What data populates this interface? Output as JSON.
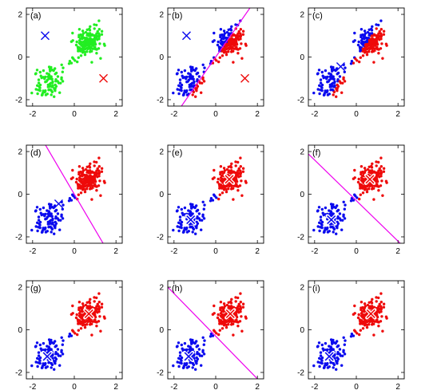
{
  "colors": {
    "unassigned": "#22ee22",
    "cluster1": "#0a0aee",
    "cluster2": "#ee0a0a",
    "boundary": "#ee00ee",
    "centroid_outline": "#ffffff"
  },
  "chart_data": [
    {
      "type": "scatter",
      "title": "(a)",
      "xlim": [
        -2.3,
        2.3
      ],
      "ylim": [
        -2.3,
        2.3
      ],
      "xticks": [
        "-2",
        "0",
        "2"
      ],
      "yticks": [
        "-2",
        "0",
        "2"
      ],
      "state": "unassigned",
      "centroids": [
        [
          -1.4,
          1.0
        ],
        [
          1.4,
          -1.0
        ]
      ],
      "centroid_style": "plain",
      "boundary": null
    },
    {
      "type": "scatter",
      "title": "(b)",
      "xlim": [
        -2.3,
        2.3
      ],
      "ylim": [
        -2.3,
        2.3
      ],
      "xticks": [
        "-2",
        "0",
        "2"
      ],
      "yticks": [
        "-2",
        "0",
        "2"
      ],
      "state": "assign",
      "centroids": [
        [
          -1.4,
          1.0
        ],
        [
          1.4,
          -1.0
        ]
      ],
      "centroid_style": "plain",
      "boundary": {
        "slope": 1.4,
        "intercept": 0.0
      }
    },
    {
      "type": "scatter",
      "title": "(c)",
      "xlim": [
        -2.3,
        2.3
      ],
      "ylim": [
        -2.3,
        2.3
      ],
      "xticks": [
        "-2",
        "0",
        "2"
      ],
      "yticks": [
        "-2",
        "0",
        "2"
      ],
      "state": "assign",
      "centroids": [
        [
          -0.75,
          -0.45
        ],
        [
          0.75,
          0.45
        ]
      ],
      "centroid_style": "plain",
      "boundary": null
    },
    {
      "type": "scatter",
      "title": "(d)",
      "xlim": [
        -2.3,
        2.3
      ],
      "ylim": [
        -2.3,
        2.3
      ],
      "xticks": [
        "-2",
        "0",
        "2"
      ],
      "yticks": [
        "-2",
        "0",
        "2"
      ],
      "state": "assign2",
      "centroids": [
        [
          -0.75,
          -0.45
        ],
        [
          0.75,
          0.45
        ]
      ],
      "centroid_style": "plain",
      "boundary": {
        "slope": -1.667,
        "intercept": 0.0
      }
    },
    {
      "type": "scatter",
      "title": "(e)",
      "xlim": [
        -2.3,
        2.3
      ],
      "ylim": [
        -2.3,
        2.3
      ],
      "xticks": [
        "-2",
        "0",
        "2"
      ],
      "yticks": [
        "-2",
        "0",
        "2"
      ],
      "state": "assign2",
      "centroids": [
        [
          -1.2,
          -1.2
        ],
        [
          0.65,
          0.7
        ]
      ],
      "centroid_style": "outlined",
      "boundary": null
    },
    {
      "type": "scatter",
      "title": "(f)",
      "xlim": [
        -2.3,
        2.3
      ],
      "ylim": [
        -2.3,
        2.3
      ],
      "xticks": [
        "-2",
        "0",
        "2"
      ],
      "yticks": [
        "-2",
        "0",
        "2"
      ],
      "state": "assign2",
      "centroids": [
        [
          -1.2,
          -1.2
        ],
        [
          0.65,
          0.7
        ]
      ],
      "centroid_style": "outlined",
      "boundary": {
        "slope": -0.95,
        "intercept": -0.3
      }
    },
    {
      "type": "scatter",
      "title": "(g)",
      "xlim": [
        -2.3,
        2.3
      ],
      "ylim": [
        -2.3,
        2.3
      ],
      "xticks": [
        "-2",
        "0",
        "2"
      ],
      "yticks": [
        "-2",
        "0",
        "2"
      ],
      "state": "final",
      "centroids": [
        [
          -1.3,
          -1.25
        ],
        [
          0.7,
          0.75
        ]
      ],
      "centroid_style": "outlined",
      "boundary": null
    },
    {
      "type": "scatter",
      "title": "(h)",
      "xlim": [
        -2.3,
        2.3
      ],
      "ylim": [
        -2.3,
        2.3
      ],
      "xticks": [
        "-2",
        "0",
        "2"
      ],
      "yticks": [
        "-2",
        "0",
        "2"
      ],
      "state": "final",
      "centroids": [
        [
          -1.3,
          -1.25
        ],
        [
          0.7,
          0.75
        ]
      ],
      "centroid_style": "outlined",
      "boundary": {
        "slope": -1.0,
        "intercept": -0.3
      }
    },
    {
      "type": "scatter",
      "title": "(i)",
      "xlim": [
        -2.3,
        2.3
      ],
      "ylim": [
        -2.3,
        2.3
      ],
      "xticks": [
        "-2",
        "0",
        "2"
      ],
      "yticks": [
        "-2",
        "0",
        "2"
      ],
      "state": "final",
      "centroids": [
        [
          -1.3,
          -1.25
        ],
        [
          0.7,
          0.75
        ]
      ],
      "centroid_style": "outlined",
      "boundary": null
    }
  ]
}
